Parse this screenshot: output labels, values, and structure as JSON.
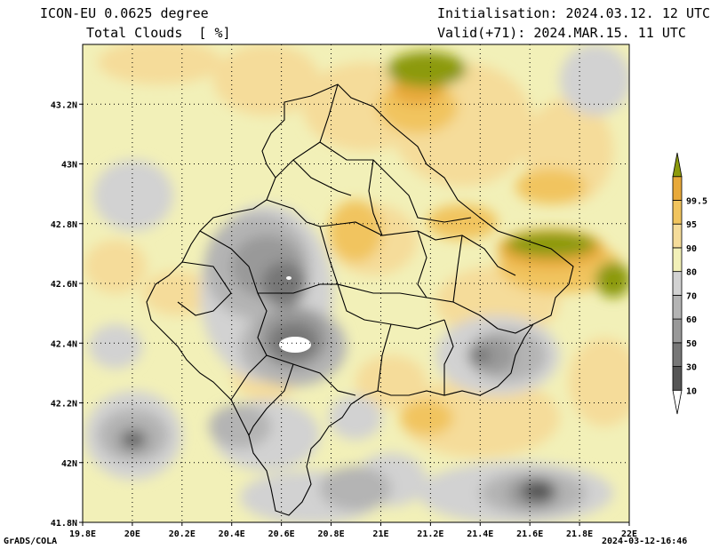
{
  "header": {
    "model_line": "ICON-EU 0.0625 degree",
    "field_line": "Total Clouds  [ %]",
    "init_line": "Initialisation: 2024.03.12. 12 UTC",
    "valid_line": "Valid(+71): 2024.MAR.15. 11 UTC"
  },
  "footer": {
    "credit": "GrADS/COLA",
    "timestamp": "2024-03-12-16:46"
  },
  "map": {
    "lon_range": [
      19.8,
      22.0
    ],
    "lat_range": [
      41.8,
      43.4
    ],
    "lon_ticks": [
      "19.8E",
      "20E",
      "20.2E",
      "20.4E",
      "20.6E",
      "20.8E",
      "21E",
      "21.2E",
      "21.4E",
      "21.6E",
      "21.8E",
      "22E"
    ],
    "lat_ticks": [
      "41.8N",
      "42N",
      "42.2N",
      "42.4N",
      "42.6N",
      "42.8N",
      "43N",
      "43.2N"
    ],
    "grid": "dotted"
  },
  "colorbar": {
    "labels": [
      "10",
      "30",
      "50",
      "60",
      "70",
      "80",
      "90",
      "95",
      "99.5"
    ],
    "colors": [
      "#ffffff",
      "#555555",
      "#777777",
      "#999999",
      "#b4b4b4",
      "#d2d2d2",
      "#f2f0b8",
      "#f5dc9a",
      "#f1c45e",
      "#e8a93a",
      "#8c9a0c"
    ]
  }
}
